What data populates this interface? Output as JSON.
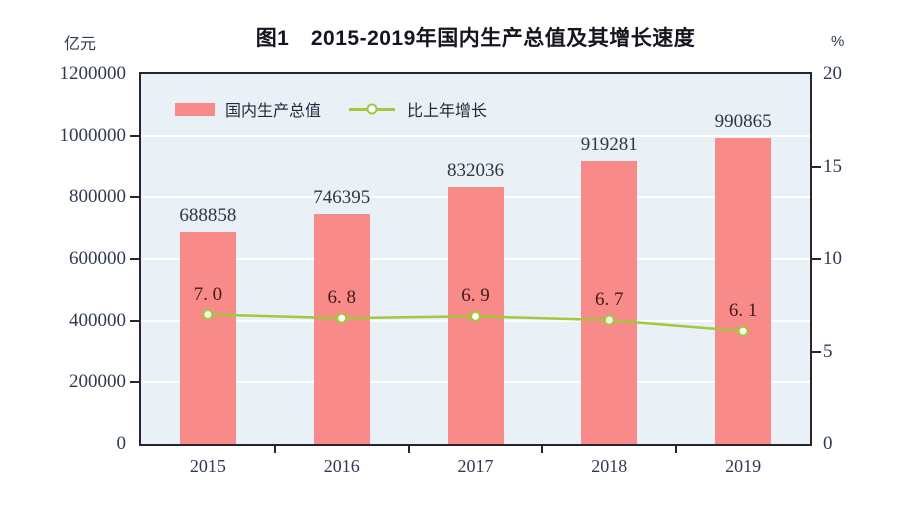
{
  "chart_data": {
    "type": "bar",
    "title": "图1　2015-2019年国内生产总值及其增长速度",
    "categories": [
      "2015",
      "2016",
      "2017",
      "2018",
      "2019"
    ],
    "series": [
      {
        "name": "国内生产总值",
        "type": "bar",
        "axis": "left",
        "values": [
          688858,
          746395,
          832036,
          919281,
          990865
        ],
        "value_labels": [
          "688858",
          "746395",
          "832036",
          "919281",
          "990865"
        ]
      },
      {
        "name": "比上年增长",
        "type": "line",
        "axis": "right",
        "values": [
          7.0,
          6.8,
          6.9,
          6.7,
          6.1
        ],
        "value_labels": [
          "7. 0",
          "6. 8",
          "6. 9",
          "6. 7",
          "6. 1"
        ]
      }
    ],
    "left_axis": {
      "unit": "亿元",
      "min": 0,
      "max": 1200000,
      "tick_step": 200000,
      "ticks": [
        0,
        200000,
        400000,
        600000,
        800000,
        1000000,
        1200000
      ],
      "tick_labels": [
        "0",
        "200000",
        "400000",
        "600000",
        "800000",
        "1000000",
        "1200000"
      ]
    },
    "right_axis": {
      "unit": "%",
      "min": 0,
      "max": 20,
      "tick_step": 5,
      "ticks": [
        0,
        5,
        10,
        15,
        20
      ],
      "tick_labels": [
        "0",
        "5",
        "10",
        "15",
        "20"
      ]
    },
    "legend_position": "top-left-inside",
    "grid": "horizontal-white",
    "colors": {
      "bar": "#f98a8a",
      "line": "#a2c83d",
      "marker_fill": "#ffffff",
      "plot_background": "#e9f1f6",
      "plot_border": "#26262e",
      "gridline": "#ffffff",
      "axis_text": "#2f3a50",
      "title_text": "#15151f",
      "bar_value_text": "#2e3647",
      "growth_value_text": "#3f1c18"
    }
  }
}
